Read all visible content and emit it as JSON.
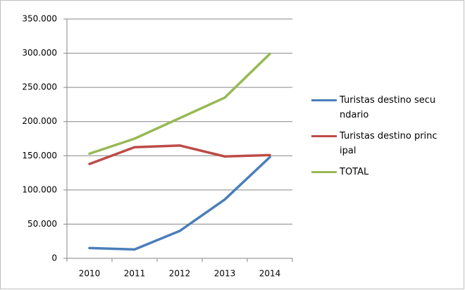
{
  "chart_data": {
    "type": "line",
    "categories": [
      "2010",
      "2011",
      "2012",
      "2013",
      "2014"
    ],
    "series": [
      {
        "name": "Turistas destino secundario",
        "color": "#4a7ebb",
        "values": [
          15000,
          13000,
          40000,
          86000,
          148000
        ]
      },
      {
        "name": "Turistas destino principal",
        "color": "#be4b48",
        "values": [
          138000,
          162500,
          165000,
          149000,
          151000
        ]
      },
      {
        "name": "TOTAL",
        "color": "#98b954",
        "values": [
          153000,
          175000,
          205000,
          235000,
          299000
        ]
      }
    ],
    "ylim": [
      0,
      350000
    ],
    "yticks": [
      0,
      {
        "value": 50000,
        "label": "50.000"
      },
      {
        "value": 100000,
        "label": "100.000"
      },
      {
        "value": 150000,
        "label": "150.000"
      },
      {
        "value": 200000,
        "label": "200.000"
      },
      {
        "value": 250000,
        "label": "250.000"
      },
      {
        "value": 300000,
        "label": "300.000"
      },
      {
        "value": 350000,
        "label": "350.000"
      }
    ],
    "grid": true
  }
}
